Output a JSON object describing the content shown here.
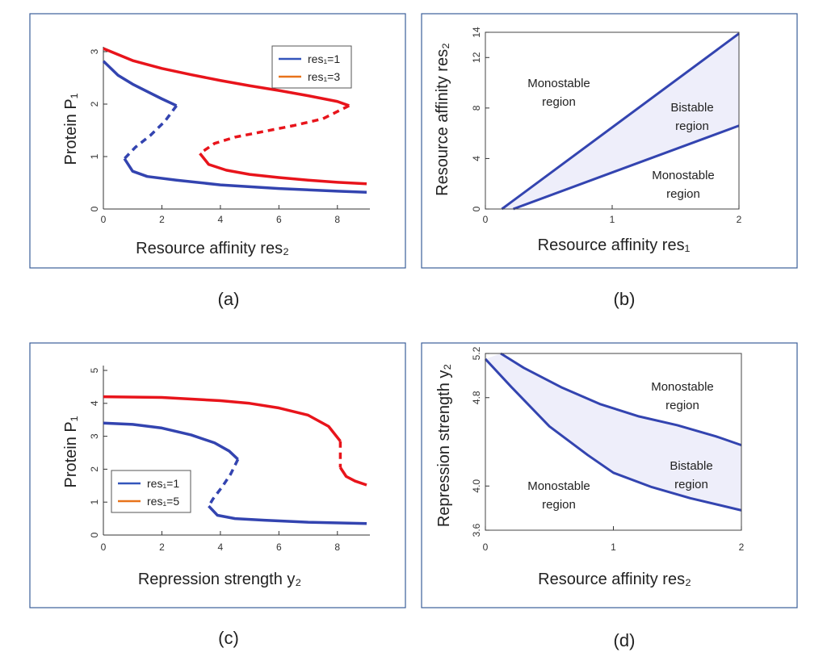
{
  "captions": [
    "(a)",
    "(b)",
    "(c)",
    "(d)"
  ],
  "colors": {
    "blue": "#3344b0",
    "red": "#e8141b",
    "fill": "#eeeefa",
    "frame": "#3b5f99",
    "legend_red": "#e8731b",
    "legend_blue": "#3355bb"
  },
  "chart_data": [
    {
      "panel": "a",
      "type": "line",
      "xlabel": "Resource affinity res₂",
      "ylabel": "Protein P₁",
      "xlim": [
        0,
        9
      ],
      "ylim": [
        0,
        3
      ],
      "xticks": [
        "0",
        "2",
        "4",
        "6",
        "8"
      ],
      "yticks": [
        "0",
        "1",
        "2",
        "3"
      ],
      "legend": [
        {
          "label": "res₁=1",
          "color": "blue"
        },
        {
          "label": "res₁=3",
          "color": "red"
        }
      ],
      "series": [
        {
          "name": "res₁=1",
          "color": "blue",
          "stable_upper": [
            [
              0,
              2.82
            ],
            [
              0.5,
              2.55
            ],
            [
              1,
              2.38
            ],
            [
              1.5,
              2.24
            ],
            [
              2,
              2.1
            ],
            [
              2.5,
              1.97
            ]
          ],
          "unstable": [
            [
              2.5,
              1.97
            ],
            [
              2.1,
              1.67
            ],
            [
              1.6,
              1.4
            ],
            [
              1.1,
              1.18
            ],
            [
              0.72,
              0.96
            ]
          ],
          "stable_lower": [
            [
              0.72,
              0.96
            ],
            [
              1,
              0.72
            ],
            [
              1.5,
              0.62
            ],
            [
              2.5,
              0.55
            ],
            [
              4,
              0.46
            ],
            [
              6,
              0.39
            ],
            [
              8,
              0.34
            ],
            [
              9,
              0.32
            ]
          ]
        },
        {
          "name": "res₁=3",
          "color": "red",
          "stable_upper": [
            [
              0,
              3.06
            ],
            [
              1,
              2.83
            ],
            [
              2,
              2.68
            ],
            [
              3,
              2.56
            ],
            [
              4,
              2.45
            ],
            [
              5,
              2.35
            ],
            [
              6,
              2.26
            ],
            [
              7,
              2.16
            ],
            [
              8,
              2.05
            ],
            [
              8.4,
              1.97
            ]
          ],
          "unstable": [
            [
              8.4,
              1.97
            ],
            [
              7.5,
              1.72
            ],
            [
              6.5,
              1.59
            ],
            [
              5.5,
              1.48
            ],
            [
              4.5,
              1.37
            ],
            [
              3.8,
              1.25
            ],
            [
              3.3,
              1.06
            ]
          ],
          "stable_lower": [
            [
              3.3,
              1.06
            ],
            [
              3.6,
              0.85
            ],
            [
              4.2,
              0.74
            ],
            [
              5,
              0.66
            ],
            [
              6,
              0.6
            ],
            [
              7,
              0.55
            ],
            [
              8,
              0.51
            ],
            [
              9,
              0.48
            ]
          ]
        }
      ]
    },
    {
      "panel": "b",
      "type": "area",
      "xlabel": "Resource affinity res₁",
      "ylabel": "Resource affinity res₂",
      "xlim": [
        0,
        2
      ],
      "ylim": [
        0,
        14
      ],
      "xticks": [
        "0",
        "1",
        "2"
      ],
      "yticks": [
        "0",
        "4",
        "8",
        "12",
        "14"
      ],
      "upper_boundary": [
        [
          0.13,
          0
        ],
        [
          2,
          13.9
        ]
      ],
      "lower_boundary": [
        [
          0.22,
          0
        ],
        [
          2,
          6.6
        ]
      ],
      "regions": [
        {
          "label_lines": [
            "Monostable",
            "region"
          ]
        },
        {
          "label_lines": [
            "Bistable",
            "region"
          ]
        },
        {
          "label_lines": [
            "Monostable",
            "region"
          ]
        }
      ]
    },
    {
      "panel": "c",
      "type": "line",
      "xlabel": "Repression strength y₂",
      "ylabel": "Protein P₁",
      "xlim": [
        0,
        9
      ],
      "ylim": [
        0,
        5
      ],
      "xticks": [
        "0",
        "2",
        "4",
        "6",
        "8"
      ],
      "yticks": [
        "0",
        "1",
        "2",
        "3",
        "4",
        "5"
      ],
      "legend": [
        {
          "label": "res₁=1",
          "color": "blue"
        },
        {
          "label": "res₁=5",
          "color": "red"
        }
      ],
      "series": [
        {
          "name": "res₁=1",
          "color": "blue",
          "stable_upper": [
            [
              0,
              3.4
            ],
            [
              1,
              3.36
            ],
            [
              2,
              3.25
            ],
            [
              3,
              3.04
            ],
            [
              3.8,
              2.8
            ],
            [
              4.3,
              2.55
            ],
            [
              4.6,
              2.3
            ]
          ],
          "unstable": [
            [
              4.6,
              2.3
            ],
            [
              4.35,
              1.85
            ],
            [
              4.05,
              1.45
            ],
            [
              3.75,
              1.1
            ],
            [
              3.6,
              0.88
            ]
          ],
          "stable_lower": [
            [
              3.6,
              0.88
            ],
            [
              3.9,
              0.6
            ],
            [
              4.5,
              0.5
            ],
            [
              5.5,
              0.45
            ],
            [
              7,
              0.39
            ],
            [
              9,
              0.35
            ]
          ]
        },
        {
          "name": "res₁=5",
          "color": "red",
          "stable_upper": [
            [
              0,
              4.2
            ],
            [
              2,
              4.18
            ],
            [
              4,
              4.08
            ],
            [
              5,
              4.0
            ],
            [
              6,
              3.86
            ],
            [
              7,
              3.64
            ],
            [
              7.7,
              3.3
            ],
            [
              8.1,
              2.85
            ]
          ],
          "unstable": [
            [
              8.1,
              2.85
            ],
            [
              8.1,
              2.45
            ],
            [
              8.1,
              2.05
            ]
          ],
          "stable_lower": [
            [
              8.1,
              2.05
            ],
            [
              8.3,
              1.78
            ],
            [
              8.6,
              1.64
            ],
            [
              9,
              1.52
            ]
          ]
        }
      ]
    },
    {
      "panel": "d",
      "type": "area",
      "xlabel": "Resource affinity res₂",
      "ylabel": "Repression strength y₂",
      "xlim": [
        0,
        2
      ],
      "ylim": [
        3.6,
        5.2
      ],
      "xticks": [
        "0",
        "1",
        "2"
      ],
      "yticks": [
        "3.6",
        "4.0",
        "4.8",
        "5.2"
      ],
      "upper_boundary": [
        [
          0.12,
          5.2
        ],
        [
          0.3,
          5.07
        ],
        [
          0.6,
          4.89
        ],
        [
          0.9,
          4.74
        ],
        [
          1.2,
          4.63
        ],
        [
          1.5,
          4.55
        ],
        [
          1.8,
          4.45
        ],
        [
          2,
          4.37
        ]
      ],
      "lower_boundary": [
        [
          0,
          5.15
        ],
        [
          0.2,
          4.9
        ],
        [
          0.5,
          4.54
        ],
        [
          0.8,
          4.28
        ],
        [
          1.0,
          4.12
        ],
        [
          1.3,
          3.99
        ],
        [
          1.6,
          3.89
        ],
        [
          2,
          3.78
        ]
      ],
      "regions": [
        {
          "label_lines": [
            "Monostable",
            "region"
          ]
        },
        {
          "label_lines": [
            "Bistable",
            "region"
          ]
        },
        {
          "label_lines": [
            "Monostable",
            "region"
          ]
        }
      ]
    }
  ]
}
